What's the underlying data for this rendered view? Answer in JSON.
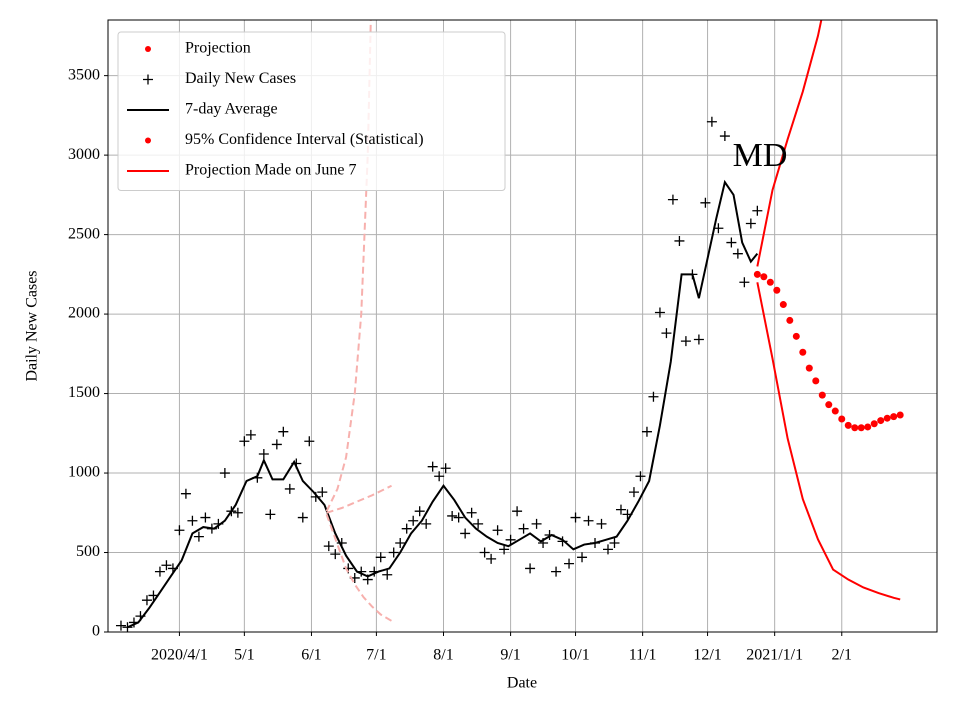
{
  "chart_data": {
    "type": "line",
    "annotation": "MD",
    "xlabel": "Date",
    "ylabel": "Daily New Cases",
    "grid": true,
    "legend_position": "upper left",
    "xlim": [
      "2020-02-28",
      "2021-03-17"
    ],
    "ylim": [
      0,
      3850
    ],
    "xticks": [
      {
        "value": "2020-04-01",
        "label": "2020/4/1"
      },
      {
        "value": "2020-05-01",
        "label": "5/1"
      },
      {
        "value": "2020-06-01",
        "label": "6/1"
      },
      {
        "value": "2020-07-01",
        "label": "7/1"
      },
      {
        "value": "2020-08-01",
        "label": "8/1"
      },
      {
        "value": "2020-09-01",
        "label": "9/1"
      },
      {
        "value": "2020-10-01",
        "label": "10/1"
      },
      {
        "value": "2020-11-01",
        "label": "11/1"
      },
      {
        "value": "2020-12-01",
        "label": "12/1"
      },
      {
        "value": "2021-01-01",
        "label": "2021/1/1"
      },
      {
        "value": "2021-02-01",
        "label": "2/1"
      }
    ],
    "yticks": [
      0,
      500,
      1000,
      1500,
      2000,
      2500,
      3000,
      3500
    ],
    "legend": [
      {
        "name": "Projection",
        "marker": "dot",
        "color": "#ff0000"
      },
      {
        "name": "Daily New Cases",
        "marker": "plus",
        "color": "#000000"
      },
      {
        "name": "7-day Average",
        "marker": "line",
        "color": "#000000"
      },
      {
        "name": "95% Confidence Interval (Statistical)",
        "marker": "dot",
        "color": "#ff0000"
      },
      {
        "name": "Projection Made on June 7",
        "marker": "line",
        "color": "#ff0000"
      }
    ],
    "series": [
      {
        "style": "dot",
        "color": "#ff0000",
        "x": [
          "2020-12-24",
          "2020-12-27",
          "2020-12-30",
          "2021-01-02",
          "2021-01-05",
          "2021-01-08",
          "2021-01-11",
          "2021-01-14",
          "2021-01-17",
          "2021-01-20",
          "2021-01-23",
          "2021-01-26",
          "2021-01-29",
          "2021-02-01",
          "2021-02-04",
          "2021-02-07",
          "2021-02-10",
          "2021-02-13",
          "2021-02-16",
          "2021-02-19",
          "2021-02-22",
          "2021-02-25",
          "2021-02-28"
        ],
        "values": [
          2250,
          2235,
          2200,
          2150,
          2060,
          1960,
          1860,
          1760,
          1660,
          1580,
          1490,
          1430,
          1390,
          1340,
          1300,
          1285,
          1285,
          1290,
          1310,
          1330,
          1345,
          1355,
          1365
        ]
      },
      {
        "style": "plus",
        "color": "#000000",
        "x": [
          "2020-03-05",
          "2020-03-08",
          "2020-03-11",
          "2020-03-14",
          "2020-03-17",
          "2020-03-20",
          "2020-03-23",
          "2020-03-26",
          "2020-03-29",
          "2020-04-01",
          "2020-04-04",
          "2020-04-07",
          "2020-04-10",
          "2020-04-13",
          "2020-04-16",
          "2020-04-19",
          "2020-04-22",
          "2020-04-25",
          "2020-04-28",
          "2020-05-01",
          "2020-05-04",
          "2020-05-07",
          "2020-05-10",
          "2020-05-13",
          "2020-05-16",
          "2020-05-19",
          "2020-05-22",
          "2020-05-25",
          "2020-05-28",
          "2020-05-31",
          "2020-06-03",
          "2020-06-06",
          "2020-06-09",
          "2020-06-12",
          "2020-06-15",
          "2020-06-18",
          "2020-06-21",
          "2020-06-24",
          "2020-06-27",
          "2020-06-30",
          "2020-07-03",
          "2020-07-06",
          "2020-07-09",
          "2020-07-12",
          "2020-07-15",
          "2020-07-18",
          "2020-07-21",
          "2020-07-24",
          "2020-07-27",
          "2020-07-30",
          "2020-08-02",
          "2020-08-05",
          "2020-08-08",
          "2020-08-11",
          "2020-08-14",
          "2020-08-17",
          "2020-08-20",
          "2020-08-23",
          "2020-08-26",
          "2020-08-29",
          "2020-09-01",
          "2020-09-04",
          "2020-09-07",
          "2020-09-10",
          "2020-09-13",
          "2020-09-16",
          "2020-09-19",
          "2020-09-22",
          "2020-09-25",
          "2020-09-28",
          "2020-10-01",
          "2020-10-04",
          "2020-10-07",
          "2020-10-10",
          "2020-10-13",
          "2020-10-16",
          "2020-10-19",
          "2020-10-22",
          "2020-10-25",
          "2020-10-28",
          "2020-10-31",
          "2020-11-03",
          "2020-11-06",
          "2020-11-09",
          "2020-11-12",
          "2020-11-15",
          "2020-11-18",
          "2020-11-21",
          "2020-11-24",
          "2020-11-27",
          "2020-11-30",
          "2020-12-03",
          "2020-12-06",
          "2020-12-09",
          "2020-12-12",
          "2020-12-15",
          "2020-12-18",
          "2020-12-21",
          "2020-12-24"
        ],
        "values": [
          40,
          30,
          60,
          100,
          200,
          230,
          380,
          420,
          400,
          640,
          870,
          700,
          600,
          720,
          650,
          680,
          1000,
          760,
          750,
          1200,
          1240,
          970,
          1120,
          740,
          1180,
          1260,
          900,
          1060,
          720,
          1200,
          850,
          880,
          540,
          490,
          560,
          400,
          340,
          380,
          330,
          380,
          470,
          360,
          500,
          560,
          650,
          700,
          760,
          680,
          1040,
          980,
          1030,
          730,
          720,
          620,
          750,
          680,
          500,
          460,
          640,
          520,
          580,
          760,
          650,
          400,
          680,
          560,
          610,
          380,
          570,
          430,
          720,
          470,
          700,
          560,
          680,
          520,
          560,
          770,
          740,
          880,
          980,
          1260,
          1480,
          2010,
          1880,
          2720,
          2460,
          1830,
          2250,
          1840,
          2700,
          3210,
          2540,
          3120,
          2450,
          2380,
          2200,
          2570,
          2650
        ]
      },
      {
        "style": "line",
        "color": "#000000",
        "x": [
          "2020-03-08",
          "2020-03-13",
          "2020-03-18",
          "2020-03-23",
          "2020-03-28",
          "2020-04-02",
          "2020-04-07",
          "2020-04-12",
          "2020-04-17",
          "2020-04-22",
          "2020-04-27",
          "2020-05-02",
          "2020-05-07",
          "2020-05-10",
          "2020-05-14",
          "2020-05-19",
          "2020-05-24",
          "2020-05-28",
          "2020-06-02",
          "2020-06-07",
          "2020-06-12",
          "2020-06-17",
          "2020-06-22",
          "2020-06-27",
          "2020-07-02",
          "2020-07-07",
          "2020-07-12",
          "2020-07-17",
          "2020-07-22",
          "2020-07-27",
          "2020-08-01",
          "2020-08-06",
          "2020-08-11",
          "2020-08-16",
          "2020-08-21",
          "2020-08-26",
          "2020-08-31",
          "2020-09-05",
          "2020-09-10",
          "2020-09-15",
          "2020-09-20",
          "2020-09-25",
          "2020-09-30",
          "2020-10-05",
          "2020-10-10",
          "2020-10-15",
          "2020-10-20",
          "2020-10-25",
          "2020-10-30",
          "2020-11-04",
          "2020-11-09",
          "2020-11-14",
          "2020-11-19",
          "2020-11-24",
          "2020-11-27",
          "2020-12-01",
          "2020-12-05",
          "2020-12-09",
          "2020-12-13",
          "2020-12-17",
          "2020-12-21",
          "2020-12-24"
        ],
        "values": [
          30,
          60,
          150,
          250,
          350,
          450,
          620,
          660,
          650,
          700,
          800,
          950,
          980,
          1080,
          960,
          960,
          1070,
          950,
          880,
          800,
          620,
          480,
          380,
          350,
          380,
          400,
          500,
          620,
          700,
          820,
          920,
          830,
          720,
          650,
          600,
          560,
          540,
          580,
          620,
          570,
          610,
          580,
          520,
          550,
          560,
          580,
          600,
          700,
          820,
          950,
          1300,
          1700,
          2250,
          2250,
          2100,
          2350,
          2600,
          2830,
          2750,
          2450,
          2330,
          2380
        ]
      },
      {
        "style": "line",
        "color": "#ff0000",
        "x": [
          "2020-12-24",
          "2020-12-31",
          "2021-01-07",
          "2021-01-14",
          "2021-01-21",
          "2021-01-28"
        ],
        "values": [
          2300,
          2780,
          3100,
          3400,
          3750,
          4200
        ]
      },
      {
        "style": "line",
        "color": "#ff0000",
        "x": [
          "2020-12-24",
          "2020-12-31",
          "2021-01-07",
          "2021-01-14",
          "2021-01-21",
          "2021-01-28",
          "2021-02-04",
          "2021-02-11",
          "2021-02-18",
          "2021-02-25",
          "2021-02-28"
        ],
        "values": [
          2200,
          1720,
          1217,
          836,
          583,
          393,
          330,
          280,
          245,
          215,
          205
        ]
      },
      {
        "style": "dashed",
        "color": "#f7b0ad",
        "x": [
          "2020-06-08",
          "2020-06-13",
          "2020-06-17",
          "2020-06-21",
          "2020-06-24",
          "2020-06-27",
          "2020-06-29"
        ],
        "values": [
          760,
          900,
          1100,
          1500,
          2000,
          3000,
          4200
        ]
      },
      {
        "style": "dashed",
        "color": "#f7b0ad",
        "x": [
          "2020-06-08",
          "2020-06-15",
          "2020-06-22",
          "2020-06-29",
          "2020-07-08"
        ],
        "values": [
          750,
          780,
          820,
          860,
          920
        ]
      },
      {
        "style": "dashed",
        "color": "#f7b0ad",
        "x": [
          "2020-06-08",
          "2020-06-13",
          "2020-06-17",
          "2020-06-21",
          "2020-06-25",
          "2020-06-29",
          "2020-07-03",
          "2020-07-08"
        ],
        "values": [
          740,
          550,
          400,
          300,
          220,
          160,
          110,
          70
        ]
      }
    ]
  }
}
